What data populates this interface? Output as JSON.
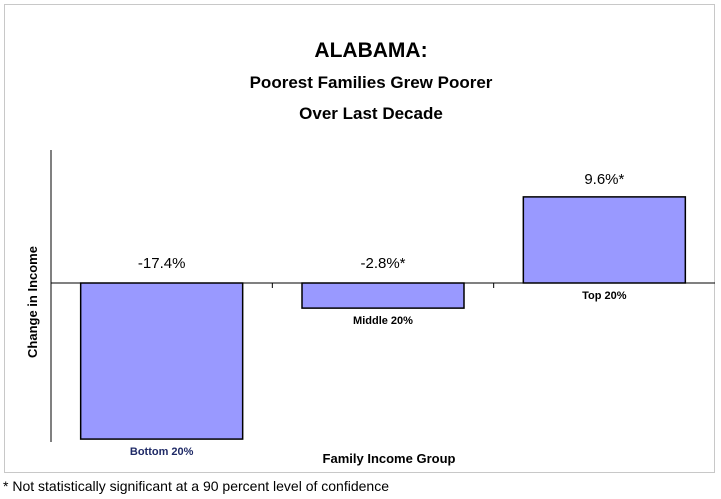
{
  "chart_data": {
    "type": "bar",
    "title": "ALABAMA:",
    "subtitle_lines": [
      "Poorest Families Grew Poorer",
      "Over Last Decade"
    ],
    "categories": [
      "Bottom 20%",
      "Middle 20%",
      "Top 20%"
    ],
    "values": [
      -17.4,
      -2.8,
      9.6
    ],
    "data_labels": [
      "-17.4%",
      "-2.8%*",
      "9.6%*"
    ],
    "xlabel": "Family Income Group",
    "ylabel": "Change in Income",
    "ylim": [
      -17.4,
      15
    ],
    "grid": false,
    "legend": "none",
    "bar_color": "#9999ff",
    "bar_edge_color": "#000000"
  },
  "footnote": "* Not statistically significant at a 90 percent level of confidence"
}
